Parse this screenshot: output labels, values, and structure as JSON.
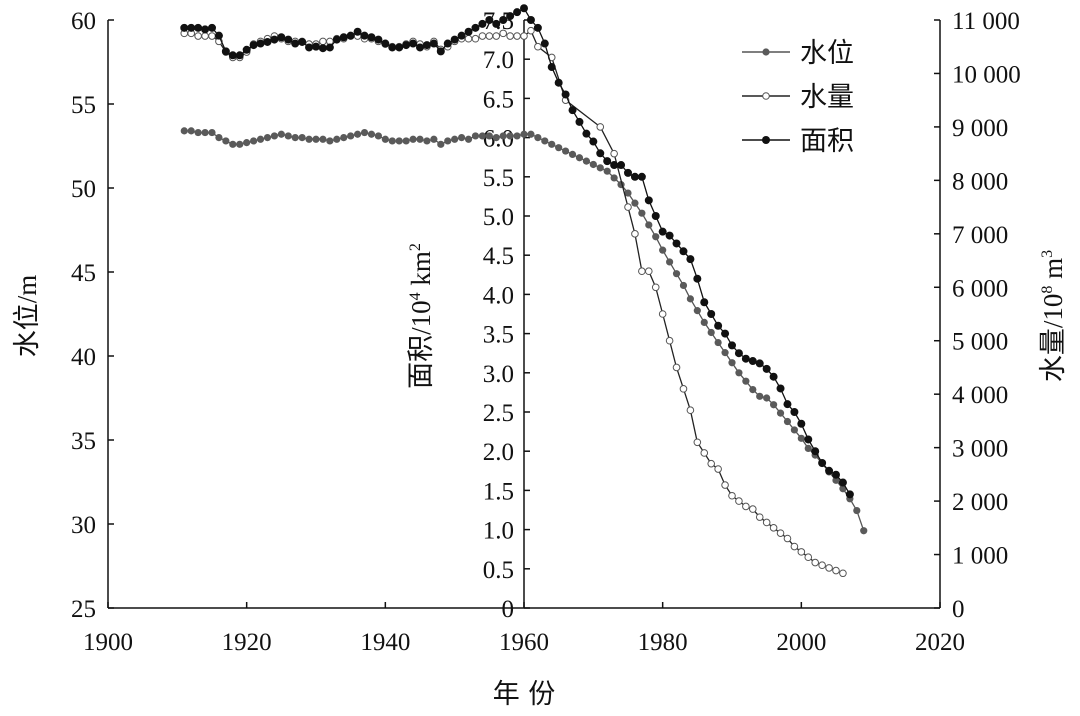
{
  "chart_data": {
    "type": "line",
    "xlabel": "年 份",
    "xlim": [
      1900,
      2020
    ],
    "x_ticks": [
      "1900",
      "1920",
      "1940",
      "1960",
      "1980",
      "2000",
      "2020"
    ],
    "axes": {
      "left": {
        "label_main": "水位",
        "label_unit": "/m",
        "lim": [
          25,
          60
        ],
        "ticks": [
          "25",
          "30",
          "35",
          "40",
          "45",
          "50",
          "55",
          "60"
        ]
      },
      "middle": {
        "label_main": "面积",
        "label_unit": "/10",
        "label_exp": "4",
        "label_tail": " km",
        "label_exp2": "2",
        "lim": [
          0,
          7.5
        ],
        "ticks": [
          "0",
          "0.5",
          "1.0",
          "1.5",
          "2.0",
          "2.5",
          "3.0",
          "3.5",
          "4.0",
          "4.5",
          "5.0",
          "5.5",
          "6.0",
          "6.5",
          "7.0",
          "7.5"
        ]
      },
      "right": {
        "label_main": "水量",
        "label_unit": "/10",
        "label_exp": "8",
        "label_tail": " m",
        "label_exp2": "3",
        "lim": [
          0,
          11000
        ],
        "ticks": [
          "0",
          "1 000",
          "2 000",
          "3 000",
          "4 000",
          "5 000",
          "6 000",
          "7 000",
          "8 000",
          "9 000",
          "10 000",
          "11 000"
        ]
      }
    },
    "legend_position": "top-right",
    "series": [
      {
        "name": "水位",
        "axis": "left",
        "color": "#555555",
        "marker": "filled-gray",
        "x": [
          1911,
          1912,
          1913,
          1914,
          1915,
          1916,
          1917,
          1918,
          1919,
          1920,
          1921,
          1922,
          1923,
          1924,
          1925,
          1926,
          1927,
          1928,
          1929,
          1930,
          1931,
          1932,
          1933,
          1934,
          1935,
          1936,
          1937,
          1938,
          1939,
          1940,
          1941,
          1942,
          1943,
          1944,
          1945,
          1946,
          1947,
          1948,
          1949,
          1950,
          1951,
          1952,
          1953,
          1954,
          1955,
          1956,
          1957,
          1958,
          1959,
          1960,
          1961,
          1962,
          1963,
          1964,
          1965,
          1966,
          1967,
          1968,
          1969,
          1970,
          1971,
          1972,
          1973,
          1974,
          1975,
          1976,
          1977,
          1978,
          1979,
          1980,
          1981,
          1982,
          1983,
          1984,
          1985,
          1986,
          1987,
          1988,
          1989,
          1990,
          1991,
          1992,
          1993,
          1994,
          1995,
          1996,
          1997,
          1998,
          1999,
          2000,
          2001,
          2002,
          2003,
          2004,
          2005,
          2006,
          2007,
          2008,
          2009
        ],
        "y": [
          53.4,
          53.4,
          53.3,
          53.3,
          53.3,
          53.0,
          52.8,
          52.6,
          52.6,
          52.7,
          52.8,
          52.9,
          53.0,
          53.1,
          53.2,
          53.1,
          53.0,
          53.0,
          52.9,
          52.9,
          52.9,
          52.8,
          52.9,
          53.0,
          53.1,
          53.2,
          53.3,
          53.2,
          53.1,
          52.9,
          52.8,
          52.8,
          52.8,
          52.9,
          52.9,
          52.8,
          52.9,
          52.6,
          52.8,
          52.9,
          53.0,
          52.9,
          53.1,
          53.1,
          53.1,
          53.0,
          53.1,
          53.1,
          53.1,
          53.2,
          53.2,
          53.0,
          52.8,
          52.6,
          52.4,
          52.2,
          52.0,
          51.8,
          51.6,
          51.4,
          51.2,
          51.0,
          50.6,
          50.2,
          49.7,
          49.1,
          48.5,
          47.8,
          47.1,
          46.3,
          45.6,
          44.9,
          44.2,
          43.4,
          42.7,
          42.0,
          41.4,
          40.8,
          40.2,
          39.6,
          39.0,
          38.5,
          38.0,
          37.6,
          37.5,
          37.1,
          36.6,
          36.1,
          35.6,
          35.1,
          34.5,
          34.1,
          33.6,
          33.1,
          32.6,
          32.1,
          31.5,
          30.8,
          29.6
        ]
      },
      {
        "name": "水量",
        "axis": "right",
        "color": "#333333",
        "marker": "hollow",
        "x": [
          1911,
          1912,
          1913,
          1914,
          1915,
          1916,
          1917,
          1918,
          1919,
          1920,
          1921,
          1922,
          1923,
          1924,
          1925,
          1926,
          1927,
          1928,
          1929,
          1930,
          1931,
          1932,
          1933,
          1934,
          1935,
          1936,
          1937,
          1938,
          1939,
          1940,
          1941,
          1942,
          1943,
          1944,
          1945,
          1946,
          1947,
          1948,
          1949,
          1950,
          1951,
          1952,
          1953,
          1954,
          1955,
          1956,
          1957,
          1958,
          1959,
          1960,
          1961,
          1962,
          1964,
          1966,
          1971,
          1973,
          1975,
          1976,
          1977,
          1978,
          1979,
          1980,
          1981,
          1982,
          1983,
          1984,
          1985,
          1986,
          1987,
          1988,
          1989,
          1990,
          1991,
          1992,
          1993,
          1994,
          1995,
          1996,
          1997,
          1998,
          1999,
          2000,
          2001,
          2002,
          2003,
          2004,
          2005,
          2006
        ],
        "y": [
          10750,
          10750,
          10700,
          10700,
          10700,
          10600,
          10400,
          10300,
          10300,
          10400,
          10550,
          10600,
          10650,
          10700,
          10650,
          10600,
          10600,
          10600,
          10550,
          10550,
          10600,
          10600,
          10650,
          10650,
          10700,
          10700,
          10650,
          10650,
          10600,
          10550,
          10500,
          10500,
          10550,
          10600,
          10550,
          10500,
          10600,
          10450,
          10500,
          10600,
          10650,
          10650,
          10650,
          10700,
          10700,
          10700,
          10750,
          10700,
          10700,
          10700,
          10800,
          10500,
          10300,
          9500,
          9000,
          8500,
          7500,
          7000,
          6300,
          6300,
          6000,
          5500,
          5000,
          4500,
          4100,
          3700,
          3100,
          2900,
          2700,
          2600,
          2300,
          2100,
          2000,
          1900,
          1850,
          1700,
          1600,
          1500,
          1400,
          1300,
          1150,
          1050,
          950,
          850,
          800,
          750,
          700,
          650
        ]
      },
      {
        "name": "面积",
        "axis": "middle",
        "color": "#111111",
        "marker": "filled-black",
        "x": [
          1911,
          1912,
          1913,
          1914,
          1915,
          1916,
          1917,
          1918,
          1919,
          1920,
          1921,
          1922,
          1923,
          1924,
          1925,
          1926,
          1927,
          1928,
          1929,
          1930,
          1931,
          1932,
          1933,
          1934,
          1935,
          1936,
          1937,
          1938,
          1939,
          1940,
          1941,
          1942,
          1943,
          1944,
          1945,
          1946,
          1947,
          1948,
          1949,
          1950,
          1951,
          1952,
          1953,
          1954,
          1955,
          1956,
          1957,
          1958,
          1959,
          1960,
          1961,
          1962,
          1963,
          1964,
          1965,
          1966,
          1967,
          1968,
          1969,
          1970,
          1971,
          1972,
          1973,
          1974,
          1975,
          1976,
          1977,
          1978,
          1979,
          1980,
          1981,
          1982,
          1983,
          1984,
          1985,
          1986,
          1987,
          1988,
          1989,
          1990,
          1991,
          1992,
          1993,
          1994,
          1995,
          1996,
          1997,
          1998,
          1999,
          2000,
          2001,
          2002,
          2003,
          2004,
          2005,
          2006,
          2007
        ],
        "y": [
          7.4,
          7.4,
          7.4,
          7.38,
          7.4,
          7.3,
          7.1,
          7.05,
          7.05,
          7.12,
          7.18,
          7.2,
          7.22,
          7.25,
          7.28,
          7.25,
          7.2,
          7.22,
          7.15,
          7.16,
          7.14,
          7.15,
          7.25,
          7.28,
          7.3,
          7.35,
          7.3,
          7.28,
          7.25,
          7.2,
          7.15,
          7.15,
          7.18,
          7.2,
          7.15,
          7.18,
          7.2,
          7.1,
          7.2,
          7.25,
          7.3,
          7.35,
          7.4,
          7.45,
          7.5,
          7.45,
          7.5,
          7.55,
          7.6,
          7.65,
          7.5,
          7.4,
          7.2,
          6.9,
          6.7,
          6.55,
          6.35,
          6.2,
          6.05,
          5.95,
          5.8,
          5.7,
          5.65,
          5.65,
          5.55,
          5.5,
          5.5,
          5.2,
          5.0,
          4.8,
          4.75,
          4.65,
          4.55,
          4.45,
          4.2,
          3.9,
          3.75,
          3.6,
          3.5,
          3.35,
          3.25,
          3.18,
          3.15,
          3.12,
          3.05,
          2.95,
          2.8,
          2.6,
          2.5,
          2.35,
          2.15,
          2.0,
          1.85,
          1.75,
          1.7,
          1.6,
          1.45
        ]
      }
    ]
  }
}
